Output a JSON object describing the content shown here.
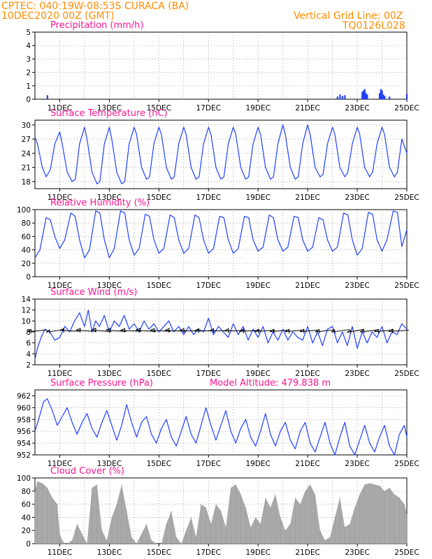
{
  "header": {
    "line1": "CPTEC:   040:19W-08:53S   CURACA (BA)",
    "line2": "10DEC2020 00Z (GMT)",
    "right1": "Vertical Grid Line: 00Z",
    "right2": "TQ0126L028"
  },
  "colors": {
    "header": "#ff8c00",
    "panel_title": "#ff1493",
    "series": "#1f3fff",
    "cloud": "#a9a9a9",
    "arrow": "#000000",
    "grid": "#888888"
  },
  "x_tick_labels": [
    "11DEC",
    "13DEC",
    "15DEC",
    "17DEC",
    "19DEC",
    "21DEC",
    "23DEC",
    "25DEC"
  ],
  "chart_data": [
    {
      "type": "bar",
      "title": "Precipitation (mm/h)",
      "ylim": [
        0,
        5
      ],
      "yticks": [
        0,
        1,
        2,
        3,
        4,
        5
      ],
      "x_range_days": [
        10,
        25
      ],
      "x": [
        10.5,
        22.2,
        22.3,
        22.4,
        22.5,
        23.2,
        23.25,
        23.3,
        23.35,
        23.4,
        23.9,
        23.95,
        24.0,
        24.05,
        24.1,
        24.3,
        25.0
      ],
      "values": [
        0.3,
        0.2,
        0.35,
        0.25,
        0.3,
        0.55,
        0.65,
        0.75,
        0.45,
        0.35,
        0.45,
        0.75,
        0.65,
        0.35,
        0.25,
        0.2,
        0.4
      ]
    },
    {
      "type": "line",
      "title": "Surface Temperature (nC)",
      "ylim": [
        16.5,
        31
      ],
      "yticks": [
        18,
        21,
        24,
        27,
        30
      ],
      "x": [
        10,
        10.1,
        10.3,
        10.45,
        10.62,
        10.8,
        11.0,
        11.1,
        11.3,
        11.5,
        11.63,
        11.8,
        12.0,
        12.1,
        12.3,
        12.5,
        12.62,
        12.8,
        13.0,
        13.1,
        13.3,
        13.5,
        13.62,
        13.8,
        14.0,
        14.1,
        14.3,
        14.5,
        14.62,
        14.8,
        15.0,
        15.1,
        15.3,
        15.5,
        15.62,
        15.8,
        16.0,
        16.1,
        16.3,
        16.5,
        16.62,
        16.8,
        17.0,
        17.1,
        17.3,
        17.5,
        17.62,
        17.8,
        18.0,
        18.1,
        18.3,
        18.5,
        18.62,
        18.8,
        19.0,
        19.1,
        19.3,
        19.5,
        19.62,
        19.8,
        20.0,
        20.1,
        20.3,
        20.5,
        20.62,
        20.8,
        21.0,
        21.1,
        21.3,
        21.5,
        21.62,
        21.8,
        22.0,
        22.1,
        22.3,
        22.5,
        22.62,
        22.8,
        23.0,
        23.1,
        23.3,
        23.5,
        23.62,
        23.8,
        24.0,
        24.1,
        24.3,
        24.5,
        24.62,
        24.8,
        25.0
      ],
      "series": [
        {
          "values": [
            27.5,
            26,
            21,
            19,
            20.5,
            26,
            28.5,
            26,
            20,
            18,
            18.5,
            26,
            29.5,
            27,
            20,
            17.5,
            18,
            26,
            29.5,
            27,
            20,
            17.5,
            18,
            26,
            29.5,
            28,
            21,
            18.5,
            19,
            26,
            29.5,
            28,
            21,
            18.5,
            19,
            26,
            29.5,
            28,
            21,
            18.5,
            19,
            26,
            29.5,
            28,
            21,
            18.5,
            19,
            26,
            29.5,
            28,
            21,
            18.5,
            19,
            26,
            29.5,
            28,
            21,
            18.5,
            19,
            26,
            30,
            28,
            21,
            18.5,
            19,
            26,
            30,
            28,
            21,
            19,
            19.5,
            26,
            29.5,
            28,
            21,
            19,
            20,
            26,
            29.5,
            28,
            21,
            19,
            20,
            26,
            29.5,
            28,
            21,
            19,
            20,
            27,
            24
          ]
        }
      ]
    },
    {
      "type": "line",
      "title": "Relative Humidity (%)",
      "ylim": [
        0,
        100
      ],
      "yticks": [
        0,
        20,
        40,
        60,
        80,
        100
      ],
      "x": [
        10,
        10.2,
        10.45,
        10.62,
        10.8,
        11.0,
        11.2,
        11.45,
        11.62,
        11.8,
        12.0,
        12.2,
        12.45,
        12.62,
        12.8,
        13.0,
        13.2,
        13.45,
        13.62,
        13.8,
        14.0,
        14.2,
        14.45,
        14.62,
        14.8,
        15.0,
        15.2,
        15.45,
        15.62,
        15.8,
        16.0,
        16.2,
        16.45,
        16.62,
        16.8,
        17.0,
        17.2,
        17.45,
        17.62,
        17.8,
        18.0,
        18.2,
        18.45,
        18.62,
        18.8,
        19.0,
        19.2,
        19.45,
        19.62,
        19.8,
        20.0,
        20.2,
        20.45,
        20.62,
        20.8,
        21.0,
        21.2,
        21.45,
        21.62,
        21.8,
        22.0,
        22.2,
        22.45,
        22.62,
        22.8,
        23.0,
        23.2,
        23.45,
        23.62,
        23.8,
        24.0,
        24.2,
        24.45,
        24.62,
        24.8,
        25.0
      ],
      "series": [
        {
          "values": [
            28,
            40,
            88,
            85,
            60,
            42,
            55,
            95,
            90,
            55,
            28,
            40,
            98,
            95,
            55,
            28,
            42,
            98,
            95,
            55,
            32,
            42,
            93,
            90,
            55,
            35,
            42,
            92,
            88,
            55,
            35,
            42,
            92,
            88,
            55,
            35,
            42,
            90,
            88,
            55,
            35,
            42,
            90,
            88,
            55,
            38,
            44,
            92,
            88,
            55,
            38,
            44,
            90,
            88,
            55,
            38,
            44,
            88,
            85,
            55,
            38,
            44,
            95,
            92,
            55,
            32,
            42,
            96,
            93,
            55,
            38,
            55,
            98,
            96,
            45,
            70
          ]
        }
      ]
    },
    {
      "type": "line",
      "title": "Surface Wind (m/s)",
      "ylim": [
        2,
        14
      ],
      "yticks": [
        2,
        4,
        6,
        8,
        10,
        12,
        14
      ],
      "x": [
        10,
        10.1,
        10.25,
        10.4,
        10.6,
        10.8,
        11.0,
        11.2,
        11.4,
        11.6,
        11.8,
        12.0,
        12.15,
        12.3,
        12.45,
        12.6,
        12.8,
        13.0,
        13.2,
        13.4,
        13.6,
        13.8,
        14.0,
        14.2,
        14.4,
        14.6,
        14.8,
        15.0,
        15.2,
        15.4,
        15.6,
        15.8,
        16.0,
        16.2,
        16.4,
        16.6,
        16.8,
        17.0,
        17.2,
        17.4,
        17.6,
        17.8,
        18.0,
        18.2,
        18.4,
        18.6,
        18.8,
        19.0,
        19.2,
        19.4,
        19.6,
        19.8,
        20.0,
        20.2,
        20.4,
        20.6,
        20.8,
        21.0,
        21.2,
        21.4,
        21.6,
        21.8,
        22.0,
        22.2,
        22.4,
        22.6,
        22.8,
        23.0,
        23.2,
        23.4,
        23.6,
        23.8,
        24.0,
        24.2,
        24.4,
        24.6,
        24.8,
        25.0
      ],
      "series": [
        {
          "values": [
            3,
            5,
            7,
            8.5,
            8,
            6.5,
            7,
            9,
            8,
            10,
            11.5,
            9,
            12,
            8,
            10,
            9,
            11,
            8,
            10,
            9,
            11,
            8.5,
            9.5,
            8,
            10,
            8.5,
            9.5,
            8,
            9,
            10,
            8,
            9,
            7.5,
            9,
            7.5,
            8.5,
            8,
            10.5,
            7.5,
            9,
            8,
            7,
            9.5,
            7.5,
            9,
            6.5,
            8.5,
            7,
            9,
            6,
            8,
            6.5,
            8.5,
            6.5,
            8,
            7,
            6.5,
            9,
            6,
            8,
            5.5,
            8.5,
            9,
            6,
            8,
            5.5,
            9,
            5,
            8,
            6,
            8,
            7,
            9,
            6,
            8,
            7.5,
            9.5,
            8.5
          ]
        }
      ],
      "arrows_y": 8.2,
      "arrows_x": [
        10.2,
        10.9,
        11.55,
        12.2,
        12.8,
        13.4,
        14.0,
        14.6,
        15.2,
        15.8,
        16.4,
        17.0,
        17.6,
        18.2,
        18.8,
        19.4,
        20.0,
        20.6,
        21.2,
        21.8,
        22.4,
        23.0,
        23.6,
        24.2,
        24.8
      ],
      "arrows_dir_deg": [
        200,
        210,
        170,
        165,
        160,
        165,
        170,
        165,
        170,
        172,
        175,
        178,
        180,
        182,
        190,
        195,
        198,
        200,
        200,
        205,
        210,
        215,
        205,
        200,
        195
      ]
    },
    {
      "type": "line",
      "title": "Surface Pressure (hPa)",
      "annotation": "Model Altitude: 479.838 m",
      "ylim": [
        952,
        963
      ],
      "yticks": [
        952,
        954,
        956,
        958,
        960,
        962
      ],
      "x": [
        10,
        10.15,
        10.35,
        10.5,
        10.7,
        10.9,
        11.1,
        11.3,
        11.5,
        11.7,
        11.9,
        12.1,
        12.3,
        12.5,
        12.7,
        12.9,
        13.1,
        13.3,
        13.5,
        13.7,
        13.9,
        14.1,
        14.3,
        14.5,
        14.7,
        14.9,
        15.1,
        15.3,
        15.5,
        15.7,
        15.9,
        16.1,
        16.3,
        16.5,
        16.7,
        16.9,
        17.1,
        17.3,
        17.5,
        17.7,
        17.9,
        18.1,
        18.3,
        18.5,
        18.7,
        18.9,
        19.1,
        19.3,
        19.5,
        19.7,
        19.9,
        20.1,
        20.3,
        20.5,
        20.7,
        20.9,
        21.1,
        21.3,
        21.5,
        21.7,
        21.9,
        22.1,
        22.3,
        22.5,
        22.7,
        22.9,
        23.1,
        23.3,
        23.5,
        23.7,
        23.9,
        24.1,
        24.3,
        24.5,
        24.7,
        24.9,
        25.0
      ],
      "series": [
        {
          "values": [
            956,
            958,
            961,
            961.5,
            959.5,
            957,
            958.5,
            960,
            957.5,
            955.5,
            957.5,
            959,
            956.5,
            955,
            957.5,
            959.5,
            957,
            954.5,
            957,
            960.5,
            957.5,
            955,
            957.5,
            958.5,
            955.5,
            954,
            956.5,
            958,
            955,
            953.5,
            956,
            958.5,
            955.5,
            954,
            957,
            960,
            957,
            954.5,
            957,
            959.5,
            956,
            954,
            956.5,
            958,
            955,
            953.5,
            956,
            959,
            955.5,
            953.5,
            956,
            957.5,
            954.5,
            953,
            956,
            957.5,
            954,
            952.5,
            955,
            957.5,
            954,
            952,
            955,
            957.5,
            953.5,
            952,
            954.5,
            957,
            954,
            952.5,
            955,
            957,
            953.5,
            952,
            955.5,
            957,
            955
          ]
        }
      ]
    },
    {
      "type": "area",
      "title": "Cloud Cover (%)",
      "ylim": [
        0,
        100
      ],
      "yticks": [
        0,
        20,
        40,
        60,
        80,
        100
      ],
      "x": [
        10,
        10.1,
        10.3,
        10.5,
        10.7,
        10.9,
        11.0,
        11.1,
        11.2,
        11.3,
        11.5,
        11.7,
        11.9,
        12.1,
        12.3,
        12.5,
        12.7,
        12.9,
        13.1,
        13.3,
        13.5,
        13.7,
        13.9,
        14.1,
        14.3,
        14.5,
        14.7,
        14.9,
        15.1,
        15.3,
        15.5,
        15.7,
        15.9,
        16.1,
        16.3,
        16.5,
        16.7,
        16.9,
        17.1,
        17.3,
        17.5,
        17.7,
        17.9,
        18.1,
        18.3,
        18.5,
        18.7,
        18.9,
        19.1,
        19.3,
        19.5,
        19.7,
        19.9,
        20.1,
        20.3,
        20.5,
        20.7,
        20.9,
        21.1,
        21.3,
        21.5,
        21.7,
        21.9,
        22.1,
        22.3,
        22.5,
        22.7,
        22.9,
        23.1,
        23.3,
        23.5,
        23.7,
        23.9,
        24.1,
        24.3,
        24.5,
        24.7,
        24.9,
        25.0
      ],
      "series": [
        {
          "values": [
            80,
            95,
            92,
            85,
            70,
            60,
            15,
            5,
            0,
            0,
            5,
            30,
            15,
            0,
            85,
            90,
            20,
            5,
            40,
            60,
            90,
            50,
            10,
            0,
            15,
            30,
            5,
            0,
            0,
            30,
            50,
            10,
            0,
            20,
            40,
            10,
            60,
            55,
            30,
            60,
            50,
            25,
            85,
            90,
            75,
            55,
            25,
            40,
            30,
            70,
            55,
            75,
            40,
            20,
            30,
            70,
            60,
            80,
            90,
            75,
            20,
            5,
            10,
            40,
            70,
            25,
            30,
            55,
            75,
            90,
            92,
            90,
            88,
            80,
            85,
            75,
            70,
            60,
            45
          ]
        }
      ]
    }
  ]
}
